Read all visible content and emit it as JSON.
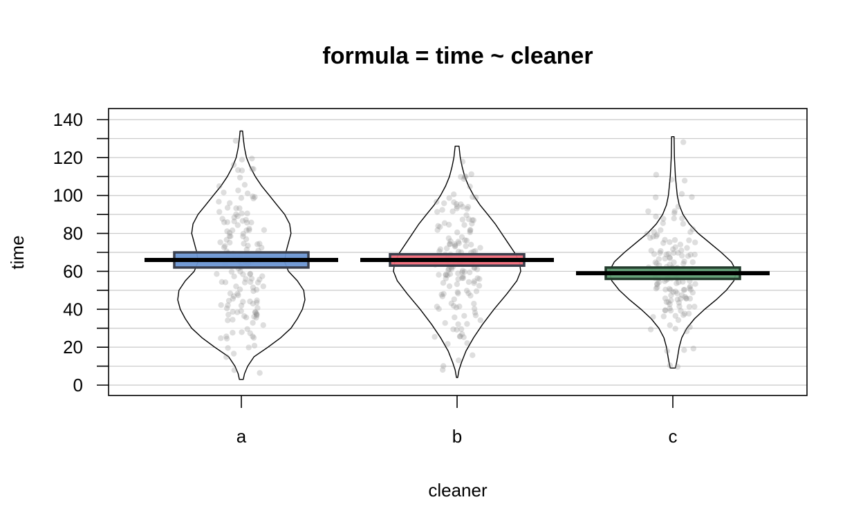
{
  "chart_data": {
    "type": "pirate",
    "title": "formula = time ~ cleaner",
    "xlabel": "cleaner",
    "ylabel": "time",
    "ylim": [
      0,
      140
    ],
    "yticks": [
      0,
      20,
      40,
      60,
      80,
      100,
      120,
      140
    ],
    "grid": true,
    "legend": "none",
    "categories": [
      "a",
      "b",
      "c"
    ],
    "series": [
      {
        "category": "a",
        "mean": 66,
        "ci": [
          62,
          70
        ],
        "min": 3,
        "max": 135,
        "color": "#6b96d3",
        "border": "#3a3f4c",
        "density": [
          [
            3,
            0.03
          ],
          [
            6,
            0.05
          ],
          [
            10,
            0.1
          ],
          [
            15,
            0.2
          ],
          [
            20,
            0.42
          ],
          [
            25,
            0.62
          ],
          [
            30,
            0.78
          ],
          [
            35,
            0.88
          ],
          [
            40,
            0.96
          ],
          [
            45,
            1.0
          ],
          [
            50,
            0.98
          ],
          [
            55,
            0.88
          ],
          [
            60,
            0.74
          ],
          [
            65,
            0.68
          ],
          [
            70,
            0.7
          ],
          [
            75,
            0.74
          ],
          [
            80,
            0.78
          ],
          [
            85,
            0.76
          ],
          [
            90,
            0.68
          ],
          [
            95,
            0.56
          ],
          [
            100,
            0.44
          ],
          [
            105,
            0.32
          ],
          [
            110,
            0.22
          ],
          [
            115,
            0.14
          ],
          [
            120,
            0.08
          ],
          [
            125,
            0.05
          ],
          [
            130,
            0.03
          ],
          [
            134,
            0.02
          ]
        ]
      },
      {
        "category": "b",
        "mean": 66,
        "ci": [
          63,
          69
        ],
        "min": 4,
        "max": 127,
        "color": "#f26c7a",
        "border": "#3a3f4c",
        "density": [
          [
            4,
            0.01
          ],
          [
            8,
            0.03
          ],
          [
            12,
            0.07
          ],
          [
            18,
            0.14
          ],
          [
            25,
            0.26
          ],
          [
            32,
            0.4
          ],
          [
            40,
            0.58
          ],
          [
            48,
            0.78
          ],
          [
            55,
            0.94
          ],
          [
            60,
            1.0
          ],
          [
            65,
            0.98
          ],
          [
            70,
            0.9
          ],
          [
            75,
            0.8
          ],
          [
            80,
            0.7
          ],
          [
            85,
            0.6
          ],
          [
            90,
            0.48
          ],
          [
            95,
            0.36
          ],
          [
            100,
            0.26
          ],
          [
            105,
            0.18
          ],
          [
            110,
            0.12
          ],
          [
            115,
            0.08
          ],
          [
            120,
            0.05
          ],
          [
            126,
            0.03
          ]
        ]
      },
      {
        "category": "c",
        "mean": 59,
        "ci": [
          56,
          62
        ],
        "min": 9,
        "max": 131,
        "color": "#5e9e73",
        "border": "#233b2c",
        "density": [
          [
            9,
            0.04
          ],
          [
            12,
            0.06
          ],
          [
            16,
            0.08
          ],
          [
            20,
            0.1
          ],
          [
            25,
            0.14
          ],
          [
            30,
            0.22
          ],
          [
            35,
            0.34
          ],
          [
            40,
            0.5
          ],
          [
            45,
            0.68
          ],
          [
            50,
            0.84
          ],
          [
            55,
            0.96
          ],
          [
            60,
            1.0
          ],
          [
            65,
            0.92
          ],
          [
            70,
            0.76
          ],
          [
            75,
            0.58
          ],
          [
            80,
            0.4
          ],
          [
            85,
            0.26
          ],
          [
            90,
            0.16
          ],
          [
            95,
            0.1
          ],
          [
            100,
            0.07
          ],
          [
            110,
            0.04
          ],
          [
            120,
            0.025
          ],
          [
            131,
            0.02
          ]
        ]
      }
    ]
  }
}
